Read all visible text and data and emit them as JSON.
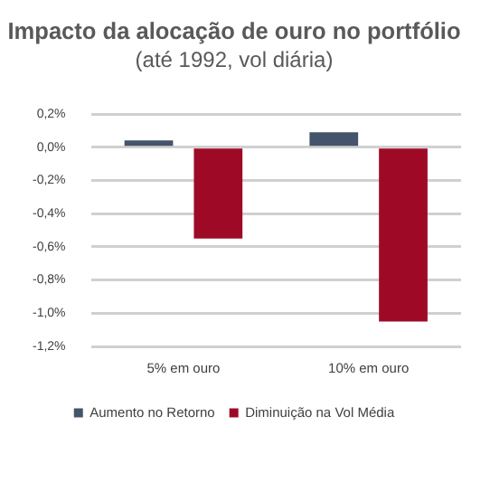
{
  "chart_data": {
    "type": "bar",
    "title": "Impacto da alocação de ouro no portfólio",
    "subtitle": "(até 1992, vol diária)",
    "categories": [
      "5% em ouro",
      "10% em ouro"
    ],
    "series": [
      {
        "name": "Aumento no Retorno",
        "color": "#44546a",
        "values": [
          0.04,
          0.09
        ]
      },
      {
        "name": "Diminuição na Vol Média",
        "color": "#9e0a26",
        "values": [
          -0.55,
          -1.05
        ]
      }
    ],
    "ylim": [
      -1.2,
      0.2
    ],
    "yticks": [
      {
        "value": -1.2,
        "label": "-1,2%"
      },
      {
        "value": -1.0,
        "label": "-1,0%"
      },
      {
        "value": -0.8,
        "label": "-0,8%"
      },
      {
        "value": -0.6,
        "label": "-0,6%"
      },
      {
        "value": -0.4,
        "label": "-0,4%"
      },
      {
        "value": -0.2,
        "label": "-0,2%"
      },
      {
        "value": 0,
        "label": "0,0%"
      },
      {
        "value": 0.2,
        "label": "0,2%"
      }
    ],
    "grid": "y",
    "legend": "bottom"
  }
}
